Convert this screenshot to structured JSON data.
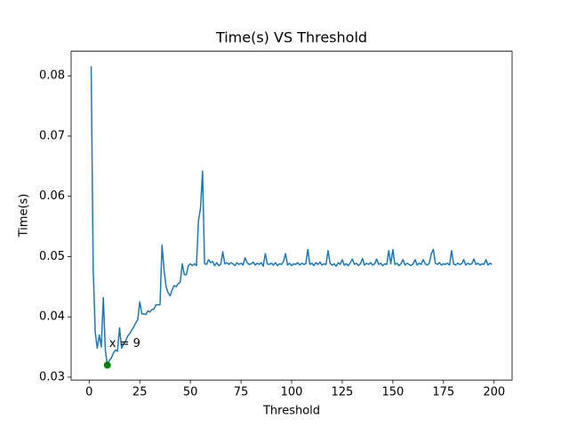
{
  "chart_data": {
    "type": "line",
    "title": "Time(s) VS Threshold",
    "x_label": "Threshold",
    "y_label": "Time(s)",
    "x": [
      1,
      2,
      3,
      4,
      5,
      6,
      7,
      8,
      9,
      10,
      11,
      12,
      13,
      14,
      15,
      16,
      17,
      18,
      19,
      20,
      21,
      22,
      23,
      24,
      25,
      26,
      27,
      28,
      29,
      30,
      31,
      32,
      33,
      34,
      35,
      36,
      37,
      38,
      39,
      40,
      41,
      42,
      43,
      44,
      45,
      46,
      47,
      48,
      49,
      50,
      51,
      52,
      53,
      54,
      55,
      56,
      57,
      58,
      59,
      60,
      61,
      62,
      63,
      64,
      65,
      66,
      67,
      68,
      69,
      70,
      71,
      72,
      73,
      74,
      75,
      76,
      77,
      78,
      79,
      80,
      81,
      82,
      83,
      84,
      85,
      86,
      87,
      88,
      89,
      90,
      91,
      92,
      93,
      94,
      95,
      96,
      97,
      98,
      99,
      100,
      101,
      102,
      103,
      104,
      105,
      106,
      107,
      108,
      109,
      110,
      111,
      112,
      113,
      114,
      115,
      116,
      117,
      118,
      119,
      120,
      121,
      122,
      123,
      124,
      125,
      126,
      127,
      128,
      129,
      130,
      131,
      132,
      133,
      134,
      135,
      136,
      137,
      138,
      139,
      140,
      141,
      142,
      143,
      144,
      145,
      146,
      147,
      148,
      149,
      150,
      151,
      152,
      153,
      154,
      155,
      156,
      157,
      158,
      159,
      160,
      161,
      162,
      163,
      164,
      165,
      166,
      167,
      168,
      169,
      170,
      171,
      172,
      173,
      174,
      175,
      176,
      177,
      178,
      179,
      180,
      181,
      182,
      183,
      184,
      185,
      186,
      187,
      188,
      189,
      190,
      191,
      192,
      193,
      194,
      195,
      196,
      197,
      198,
      199
    ],
    "series": [
      {
        "name": "time",
        "color": "#1f77b4",
        "values": [
          0.0816,
          0.048,
          0.0375,
          0.0348,
          0.037,
          0.035,
          0.0432,
          0.0345,
          0.032,
          0.0328,
          0.0332,
          0.034,
          0.0345,
          0.0343,
          0.0382,
          0.0348,
          0.0355,
          0.036,
          0.0368,
          0.0372,
          0.0378,
          0.0383,
          0.039,
          0.0395,
          0.0425,
          0.0405,
          0.0405,
          0.0404,
          0.041,
          0.0408,
          0.0412,
          0.0413,
          0.042,
          0.042,
          0.042,
          0.0519,
          0.0478,
          0.045,
          0.044,
          0.0435,
          0.0445,
          0.0452,
          0.045,
          0.0455,
          0.0458,
          0.0488,
          0.047,
          0.047,
          0.0485,
          0.0488,
          0.0485,
          0.0488,
          0.0485,
          0.056,
          0.058,
          0.0642,
          0.0488,
          0.0487,
          0.0495,
          0.049,
          0.0492,
          0.0485,
          0.049,
          0.0485,
          0.0487,
          0.0508,
          0.0488,
          0.049,
          0.0487,
          0.049,
          0.0488,
          0.0485,
          0.049,
          0.0487,
          0.0489,
          0.0486,
          0.0498,
          0.049,
          0.0487,
          0.0488,
          0.0491,
          0.0486,
          0.0489,
          0.0487,
          0.049,
          0.0484,
          0.0505,
          0.0488,
          0.0487,
          0.0489,
          0.0486,
          0.049,
          0.0485,
          0.0488,
          0.0487,
          0.0492,
          0.0505,
          0.0486,
          0.0489,
          0.0485,
          0.0488,
          0.0487,
          0.049,
          0.0486,
          0.0489,
          0.0487,
          0.0488,
          0.0512,
          0.0487,
          0.0489,
          0.0485,
          0.049,
          0.0487,
          0.0491,
          0.0486,
          0.0488,
          0.0487,
          0.051,
          0.0489,
          0.0486,
          0.0488,
          0.0484,
          0.049,
          0.0487,
          0.0495,
          0.0486,
          0.0488,
          0.0485,
          0.049,
          0.0496,
          0.0487,
          0.0489,
          0.0485,
          0.0488,
          0.0497,
          0.0486,
          0.0489,
          0.0487,
          0.049,
          0.0486,
          0.0488,
          0.0496,
          0.0487,
          0.0489,
          0.0485,
          0.0488,
          0.0487,
          0.051,
          0.0488,
          0.0512,
          0.0487,
          0.0489,
          0.0485,
          0.0488,
          0.0495,
          0.0486,
          0.0489,
          0.0487,
          0.0485,
          0.0488,
          0.0495,
          0.0486,
          0.0489,
          0.0487,
          0.0495,
          0.0488,
          0.0486,
          0.0489,
          0.0505,
          0.0512,
          0.0489,
          0.0487,
          0.049,
          0.0486,
          0.0488,
          0.0487,
          0.0489,
          0.0486,
          0.051,
          0.0488,
          0.0486,
          0.0489,
          0.0487,
          0.0488,
          0.0495,
          0.0486,
          0.0489,
          0.0487,
          0.0488,
          0.0496,
          0.0487,
          0.0489,
          0.0486,
          0.0488,
          0.0487,
          0.0495,
          0.0486,
          0.0489,
          0.0487
        ]
      }
    ],
    "marker": {
      "x": 9,
      "y": 0.032,
      "color": "green"
    },
    "annotation": "x = 9",
    "xlim": [
      -8.9,
      208.9
    ],
    "xticks": [
      0,
      25,
      50,
      75,
      100,
      125,
      150,
      175,
      200
    ],
    "ylim": [
      0.02952,
      0.08408
    ],
    "yticks": [
      0.03,
      0.04,
      0.05,
      0.06,
      0.07,
      0.08
    ]
  }
}
